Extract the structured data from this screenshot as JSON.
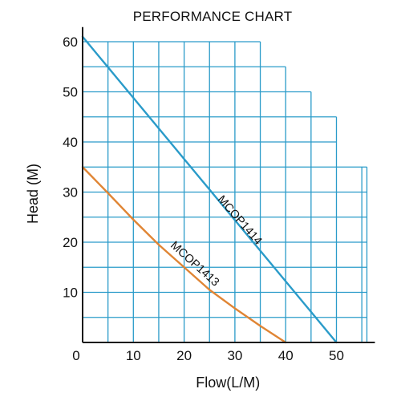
{
  "chart_data": {
    "type": "line",
    "title": "PERFORMANCE CHART",
    "xlabel": "Flow(L/M)",
    "ylabel": "Head (M)",
    "xlim": [
      0,
      56
    ],
    "ylim": [
      0,
      61
    ],
    "x_ticks": [
      0,
      10,
      20,
      30,
      40,
      50
    ],
    "y_ticks": [
      10,
      20,
      30,
      40,
      50,
      60
    ],
    "grid": true,
    "grid_step": 5,
    "legend": "none",
    "series": [
      {
        "name": "MCOP1414",
        "color": "#2a9bc9",
        "label_rotation": 49,
        "label_at": [
          26.5,
          28.5
        ],
        "x": [
          0,
          50
        ],
        "y": [
          61,
          0
        ]
      },
      {
        "name": "MCOP1413",
        "color": "#e08534",
        "label_rotation": 42,
        "label_at": [
          17.2,
          19.2
        ],
        "x": [
          0,
          5,
          10,
          15,
          20,
          25,
          30,
          35,
          40
        ],
        "y": [
          35,
          29.8,
          24.5,
          19.5,
          15,
          10.5,
          6.8,
          3.3,
          0
        ]
      }
    ]
  }
}
